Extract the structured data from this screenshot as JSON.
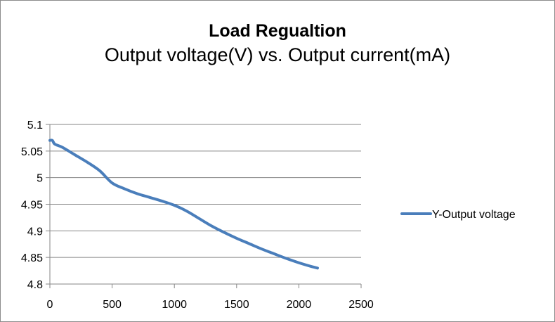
{
  "chart_data": {
    "type": "line",
    "title": "Load Regualtion",
    "subtitle": "Output voltage(V) vs. Output current(mA)",
    "xlabel": "",
    "ylabel": "",
    "xlim": [
      0,
      2500
    ],
    "ylim": [
      4.8,
      5.1
    ],
    "x_ticks": [
      0,
      500,
      1000,
      1500,
      2000,
      2500
    ],
    "y_ticks": [
      4.8,
      4.85,
      4.9,
      4.95,
      5.0,
      5.05,
      5.1
    ],
    "x_tick_labels": [
      "0",
      "500",
      "1000",
      "1500",
      "2000",
      "2500"
    ],
    "y_tick_labels": [
      "4.8",
      "4.85",
      "4.9",
      "4.95",
      "5",
      "5.05",
      "5.1"
    ],
    "grid": "horizontal",
    "legend_position": "right",
    "series": [
      {
        "name": "Y-Output voltage",
        "color": "#4a7ebb",
        "x": [
          0,
          20,
          40,
          100,
          200,
          300,
          400,
          500,
          600,
          700,
          800,
          900,
          1000,
          1100,
          1200,
          1300,
          1400,
          1500,
          1600,
          1700,
          1800,
          1900,
          2000,
          2100,
          2150
        ],
        "y": [
          5.07,
          5.07,
          5.063,
          5.057,
          5.043,
          5.029,
          5.013,
          4.99,
          4.979,
          4.97,
          4.963,
          4.956,
          4.948,
          4.937,
          4.923,
          4.909,
          4.897,
          4.886,
          4.876,
          4.866,
          4.857,
          4.848,
          4.84,
          4.833,
          4.83
        ]
      }
    ]
  }
}
